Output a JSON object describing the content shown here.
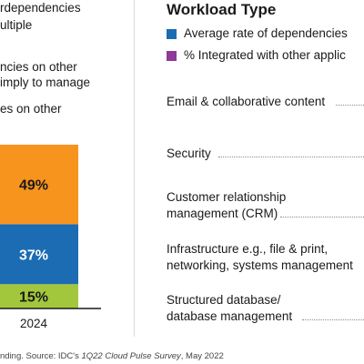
{
  "colors": {
    "orange": "#F7941D",
    "blue": "#1B6CB3",
    "green": "#A3C73C",
    "purple": "#8E3A96",
    "legend_blue": "#1B6CB3"
  },
  "left_panel": {
    "lines": [
      "rdependencies",
      "ultiple",
      "ncies on other",
      "imply to manage",
      "es on other"
    ]
  },
  "chart_data": {
    "type": "bar",
    "stacked": true,
    "categories": [
      "2024"
    ],
    "series": [
      {
        "values": [
          15
        ],
        "label": "15%",
        "color": "#A3C73C"
      },
      {
        "values": [
          37
        ],
        "label": "37%",
        "color": "#1B6CB3"
      },
      {
        "values": [
          49
        ],
        "label": "49%",
        "color": "#F7941D"
      }
    ],
    "ylim": [
      0,
      101
    ]
  },
  "workload": {
    "title": "Workload Type",
    "legend": [
      {
        "label": "Average rate of dependencies",
        "color": "#1B6CB3",
        "icon": "blue-square-icon"
      },
      {
        "label": "% Integrated with other applic",
        "color": "#8E3A96",
        "icon": "purple-square-icon"
      }
    ],
    "rows": [
      {
        "lines": [
          "Email & collaborative content"
        ]
      },
      {
        "lines": [
          "Security"
        ]
      },
      {
        "lines": [
          "Customer relationship",
          "management (CRM)"
        ]
      },
      {
        "lines": [
          "Infrastructure e.g., file & print,",
          "networking, systems management"
        ]
      },
      {
        "lines": [
          "Structured database/",
          "database management"
        ]
      }
    ]
  },
  "footnote": {
    "prefix": "nding. Source: IDC's ",
    "survey": "1Q22 Cloud Pulse Survey",
    "suffix": ", May 2022"
  }
}
